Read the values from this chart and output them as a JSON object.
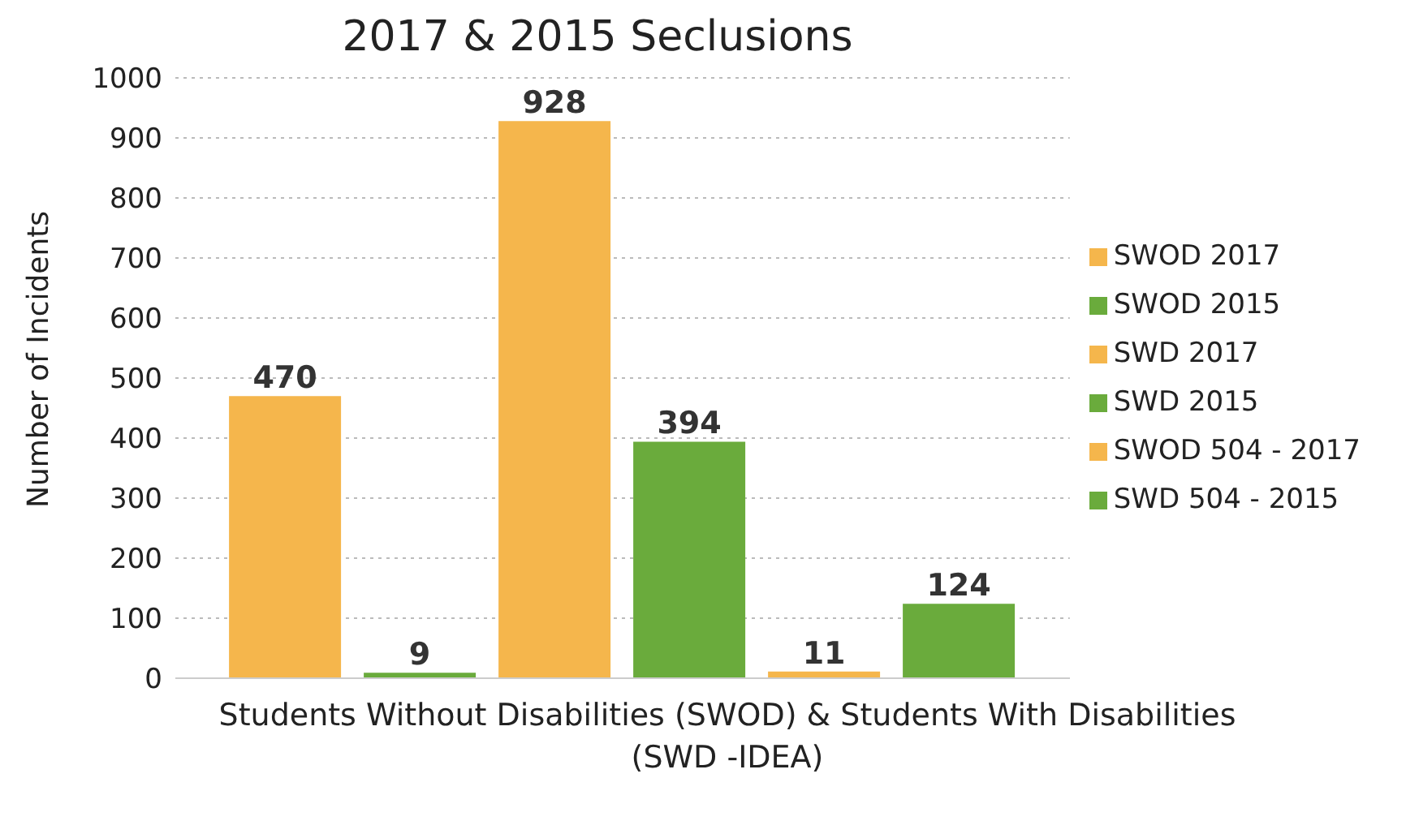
{
  "chart_data": {
    "type": "bar",
    "title": "2017 & 2015 Seclusions",
    "xlabel": "Students Without Disabilities (SWOD) & Students With Disabilities (SWD -IDEA)",
    "ylabel": "Number of Incidents",
    "categories": [
      null
    ],
    "series": [
      {
        "name": "SWOD 2017",
        "color": "#f5b64c",
        "values": [
          470
        ]
      },
      {
        "name": "SWOD 2015",
        "color": "#6aab3c",
        "values": [
          9
        ]
      },
      {
        "name": "SWD 2017",
        "color": "#f5b64c",
        "values": [
          928
        ]
      },
      {
        "name": "SWD 2015",
        "color": "#6aab3c",
        "values": [
          394
        ]
      },
      {
        "name": "SWOD 504 - 2017",
        "color": "#f5b64c",
        "values": [
          11
        ]
      },
      {
        "name": "SWD 504 - 2015",
        "color": "#6aab3c",
        "values": [
          124
        ]
      }
    ],
    "ylim": [
      0,
      1000
    ],
    "yticks": [
      0,
      100,
      200,
      300,
      400,
      500,
      600,
      700,
      800,
      900,
      1000
    ],
    "grid": "y",
    "legend": "right",
    "data_labels": true
  }
}
